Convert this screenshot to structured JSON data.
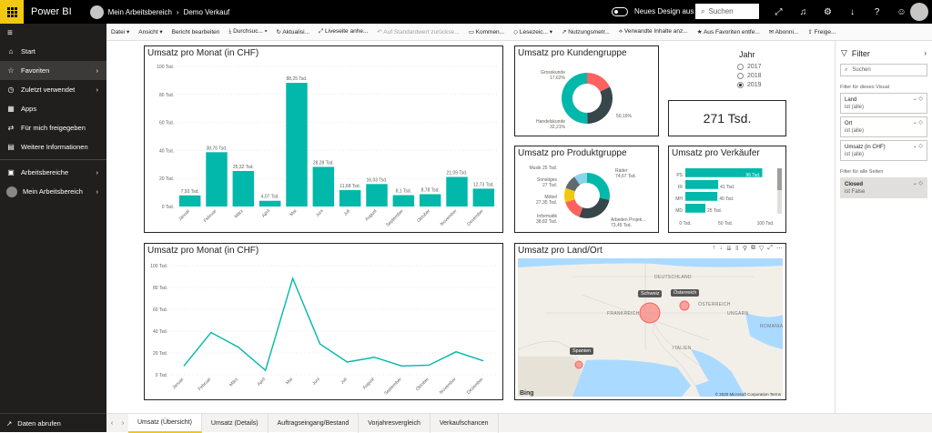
{
  "header": {
    "app_name": "Power BI",
    "breadcrumb_workspace": "Mein Arbeitsbereich",
    "breadcrumb_sep": "›",
    "breadcrumb_report": "Demo Verkauf",
    "new_design_label": "Neues Design aus",
    "search_placeholder": "Suchen"
  },
  "toolbar": [
    "Datei ▾",
    "Ansicht ▾",
    "Bericht bearbeiten",
    "⤓ Durchsuc... ▾",
    "↻ Aktualisi...",
    "⤢ Liveseite anhe...",
    "↶ Auf Standardwert zurückse...",
    "▭ Kommen...",
    "◇ Lesezeic... ▾",
    "↗ Nutzungsmetr...",
    "⟡ Verwandte Inhalte anz...",
    "★ Aus Favoriten entfe...",
    "✉ Abonni...",
    "⇪ Freige..."
  ],
  "nav": {
    "items": [
      {
        "icon": "≡"
      },
      {
        "label": "Start",
        "icon": "⌂"
      },
      {
        "label": "Favoriten",
        "icon": "☆",
        "chev": "›"
      },
      {
        "label": "Zuletzt verwendet",
        "icon": "◷",
        "chev": "›"
      },
      {
        "label": "Apps",
        "icon": "▦"
      },
      {
        "label": "Für mich freigegeben",
        "icon": "⇄"
      },
      {
        "label": "Weitere Informationen",
        "icon": "▤"
      },
      {
        "label": "Arbeitsbereiche",
        "icon": "▣",
        "chev": "›"
      },
      {
        "label": "Mein Arbeitsbereich",
        "icon": "avatar",
        "chev": "›"
      }
    ],
    "bottom_label": "Daten abrufen",
    "bottom_icon": "↗"
  },
  "visuals": {
    "bar": {
      "title": "Umsatz pro Monat (in CHF)"
    },
    "line": {
      "title": "Umsatz pro Monat (in CHF)"
    },
    "donut1": {
      "title": "Umsatz pro Kundengruppe"
    },
    "donut2": {
      "title": "Umsatz pro Produktgruppe"
    },
    "seller": {
      "title": "Umsatz pro Verkäufer"
    },
    "map": {
      "title": "Umsatz pro Land/Ort",
      "bing": "Bing",
      "copyright": "© 2020 Microsoft Corporation  Terms",
      "labels": [
        "Schweiz",
        "Österreich",
        "Spanien"
      ],
      "countries": [
        "DEUTSCHLAND",
        "FRANKREICH",
        "ITALIEN",
        "ÖSTERREICH",
        "UNGARN",
        "ROMANIA"
      ]
    }
  },
  "slicer": {
    "title": "Jahr",
    "options": [
      "2017",
      "2018",
      "2019"
    ],
    "selected": "2019"
  },
  "kpi": {
    "value": "271 Tsd."
  },
  "filter": {
    "title": "Filter",
    "search": "Suchen",
    "section_visual": "Filter für dieses Visual",
    "cards": [
      {
        "name": "Land",
        "value": "ist (alle)"
      },
      {
        "name": "Ort",
        "value": "ist (alle)"
      },
      {
        "name": "Umsatz (in CHF)",
        "value": "ist (alle)"
      }
    ],
    "section_all": "Filter für alle Seiten",
    "all_card": {
      "name": "Closed",
      "value": "ist False"
    }
  },
  "tabs": [
    "Umsatz (Übersicht)",
    "Umsatz (Details)",
    "Auftragseingang/Bestand",
    "Vorjahresvergleich",
    "Verkaufschancen"
  ],
  "chart_data": [
    {
      "type": "bar",
      "title": "Umsatz pro Monat (in CHF)",
      "categories": [
        "Januar",
        "Februar",
        "März",
        "April",
        "Mai",
        "Juni",
        "Juli",
        "August",
        "September",
        "Oktober",
        "November",
        "Dezember"
      ],
      "values": [
        7.93,
        38.76,
        25.32,
        4.07,
        88.25,
        28.28,
        11.68,
        16.03,
        8.1,
        8.78,
        21.09,
        12.73
      ],
      "data_labels": [
        "7,93 Tsd.",
        "38,76 Tsd.",
        "25,32 Tsd.",
        "4,07 Tsd.",
        "88,25 Tsd.",
        "28,28 Tsd.",
        "11,68 Tsd.",
        "16,03 Tsd.",
        "8,1 Tsd.",
        "8,78 Tsd.",
        "21,09 Tsd.",
        "12,73 Tsd."
      ],
      "yticks": [
        "0 Tsd.",
        "20 Tsd.",
        "40 Tsd.",
        "60 Tsd.",
        "80 Tsd.",
        "100 Tsd."
      ],
      "ylim": [
        0,
        100
      ],
      "color": "#01b8aa"
    },
    {
      "type": "line",
      "title": "Umsatz pro Monat (in CHF)",
      "categories": [
        "Januar",
        "Februar",
        "März",
        "April",
        "Mai",
        "Juni",
        "Juli",
        "August",
        "September",
        "Oktober",
        "November",
        "Dezember"
      ],
      "values": [
        7.93,
        38.76,
        25.32,
        4.07,
        88.25,
        28.28,
        11.68,
        16.03,
        8.1,
        8.78,
        21.09,
        12.73
      ],
      "yticks": [
        "0 Tsd.",
        "20 Tsd.",
        "40 Tsd.",
        "60 Tsd.",
        "80 Tsd.",
        "100 Tsd."
      ],
      "ylim": [
        0,
        100
      ],
      "color": "#01b8aa"
    },
    {
      "type": "pie",
      "title": "Umsatz pro Kundengruppe",
      "slices": [
        {
          "label": "Grosskunde",
          "value": 17.62,
          "color": "#fd625e"
        },
        {
          "label": "Handelskunde",
          "value": 32.21,
          "color": "#374649"
        },
        {
          "label": "",
          "value": 50.16,
          "color": "#01b8aa"
        }
      ],
      "data_labels": [
        "Grosskunde\n17,62%",
        "Handelskunde\n32,21%",
        "50,16%"
      ]
    },
    {
      "type": "pie",
      "title": "Umsatz pro Produktgruppe",
      "slices": [
        {
          "label": "Räder",
          "value": 74.67,
          "color": "#01b8aa"
        },
        {
          "label": "Arbeiten Projek...",
          "value": 73.45,
          "color": "#374649"
        },
        {
          "label": "Informatik",
          "value": 38.82,
          "color": "#fd625e"
        },
        {
          "label": "Möbel",
          "value": 27.35,
          "color": "#f2c80f"
        },
        {
          "label": "Sonstiges",
          "value": 27,
          "color": "#5f6b6d"
        },
        {
          "label": "Musik",
          "value": 25,
          "color": "#8ad4eb"
        }
      ],
      "data_labels": [
        "Räder\n74,67 Tsd.",
        "Arbeiten Projek...\n73,45 Tsd.",
        "Informatik\n38,82 Tsd.",
        "Möbel\n27,35 Tsd.",
        "Sonstiges\n27 Tsd.",
        "Musik 25 Tsd."
      ]
    },
    {
      "type": "bar",
      "title": "Umsatz pro Verkäufer",
      "orientation": "horizontal",
      "categories": [
        "PS",
        "IR",
        "MH",
        "MD"
      ],
      "values": [
        96,
        41,
        40,
        25
      ],
      "data_labels": [
        "96 Tsd.",
        "41 Tsd.",
        "40 Tsd.",
        "25 Tsd."
      ],
      "xticks": [
        "0 Tsd.",
        "50 Tsd.",
        "100 Tsd."
      ],
      "xlim": [
        0,
        100
      ],
      "color": "#01b8aa"
    }
  ]
}
